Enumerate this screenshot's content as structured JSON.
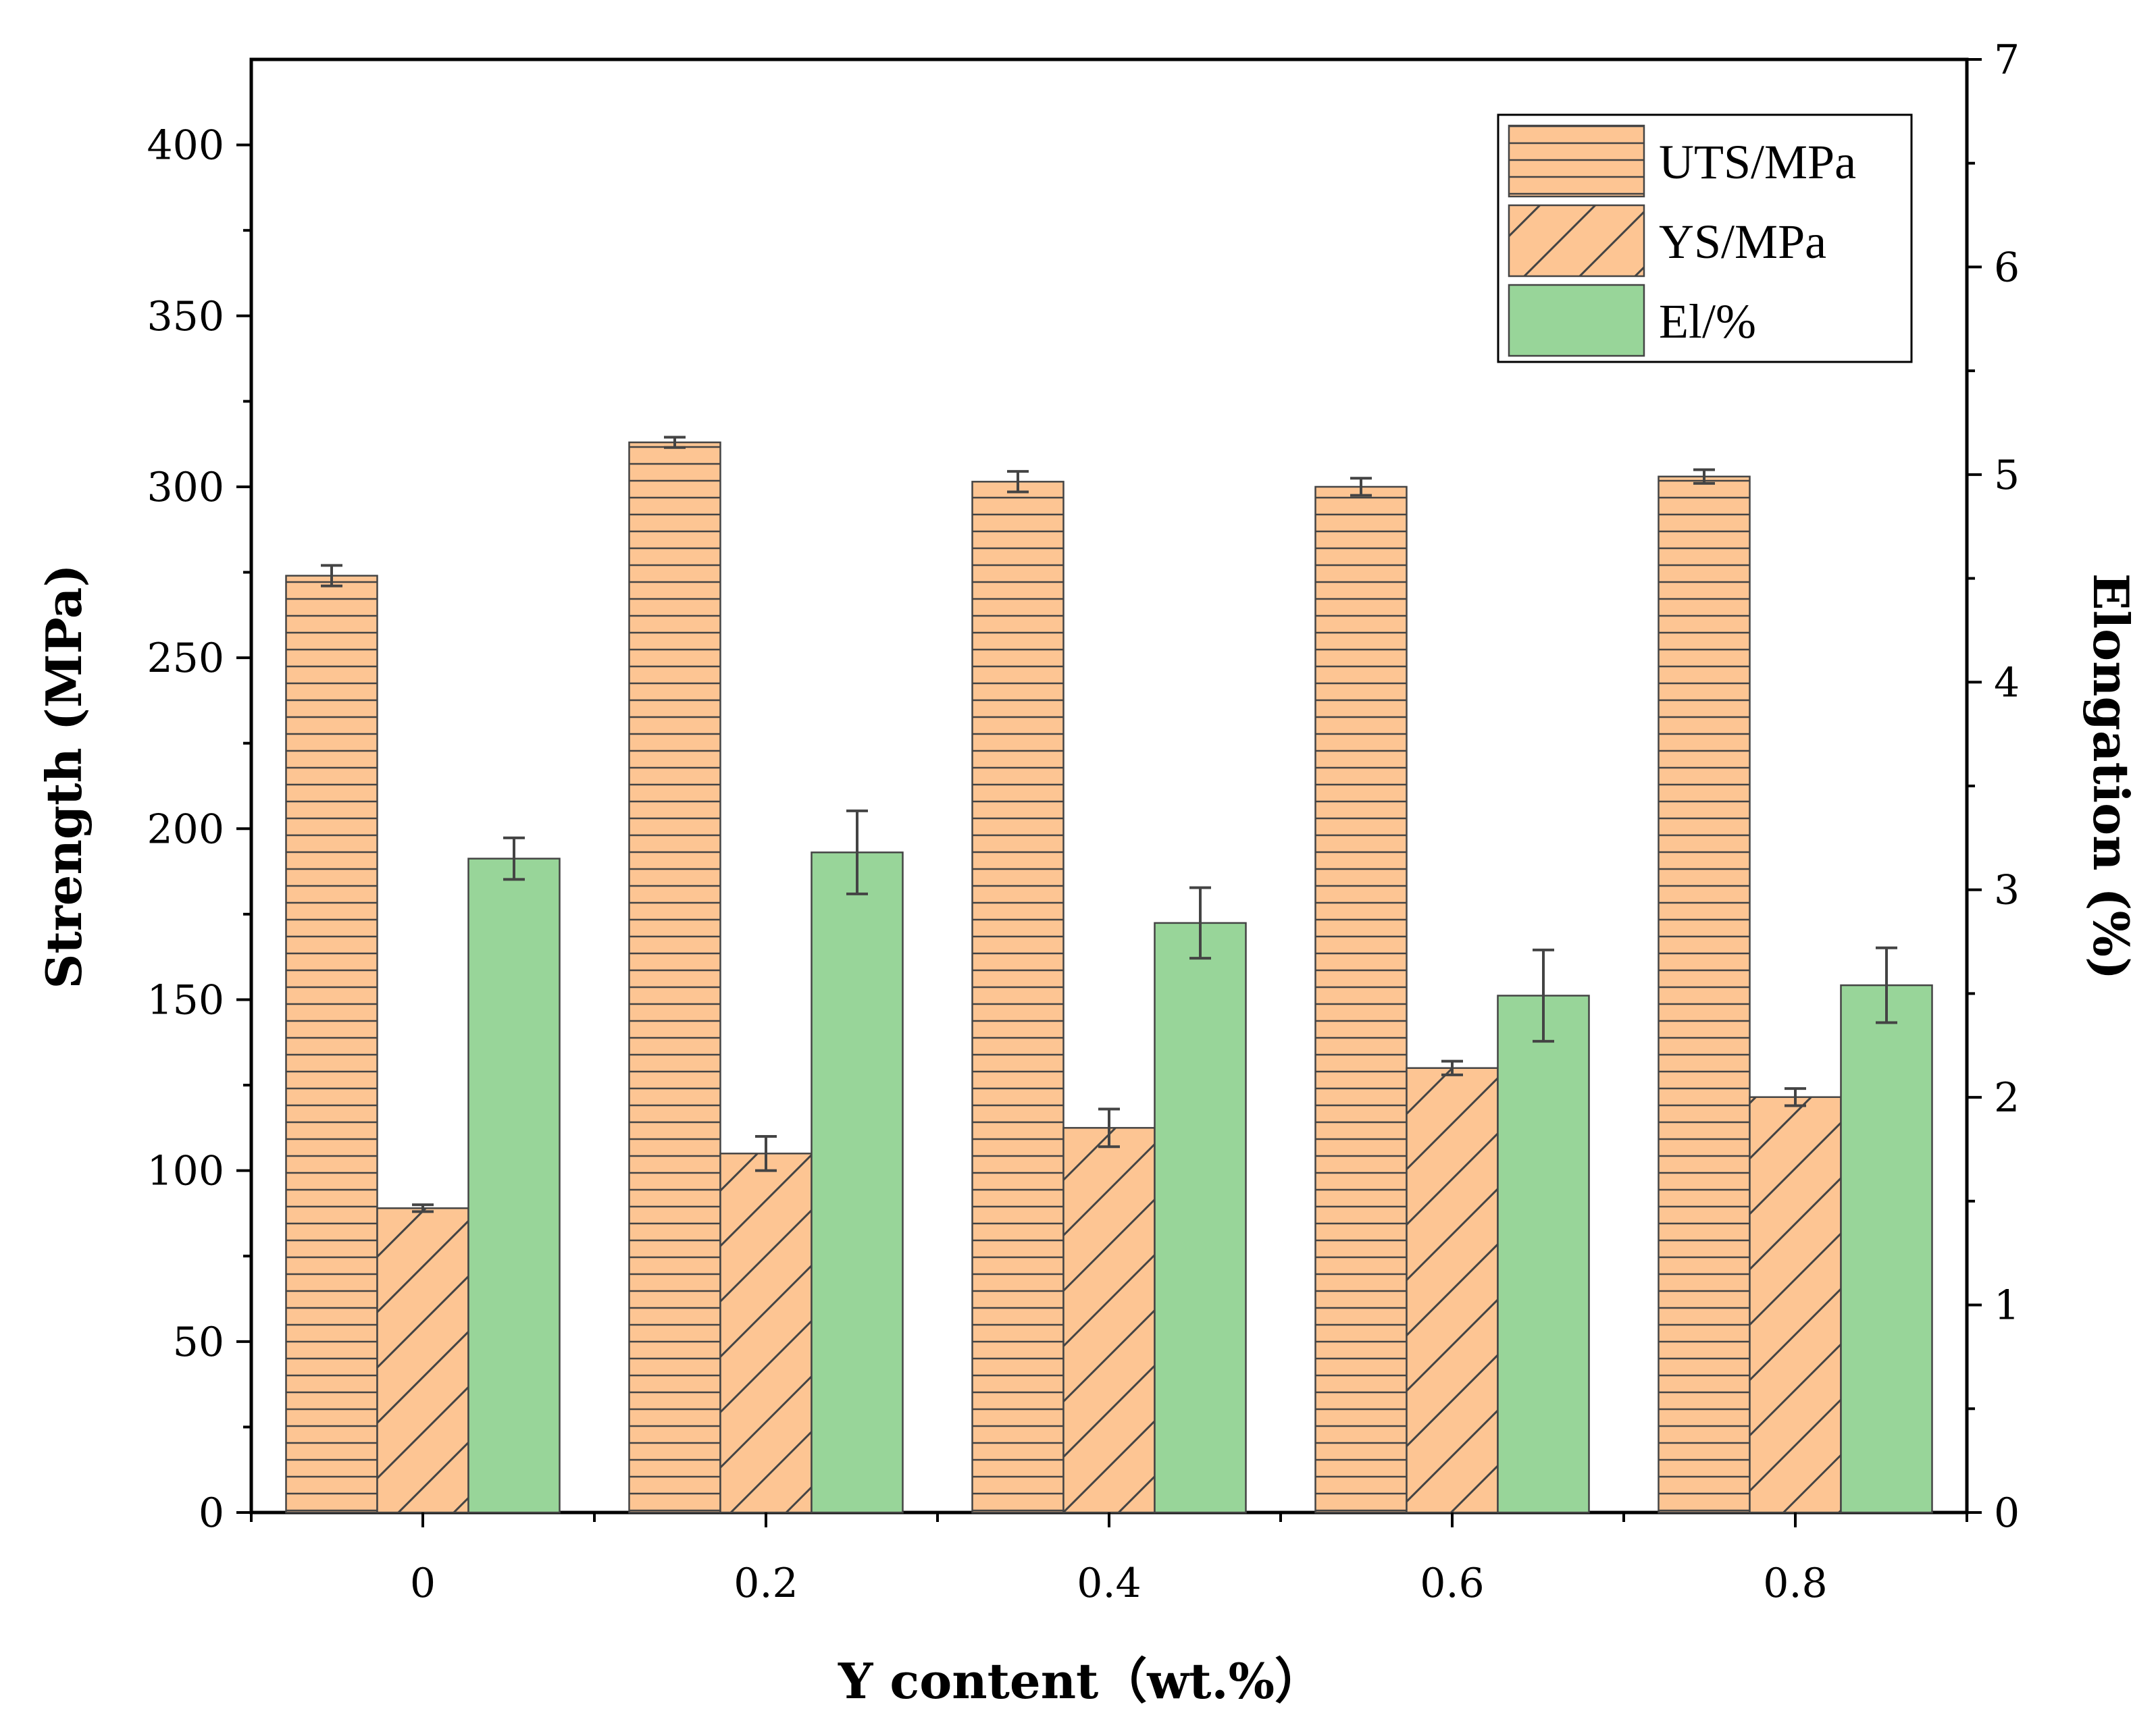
{
  "chart_data": {
    "type": "bar",
    "xlabel": "Y content（wt.%）",
    "ylabel_left": "Strength (MPa)",
    "ylabel_right": "Elongation (%)",
    "categories": [
      "0",
      "0.2",
      "0.4",
      "0.6",
      "0.8"
    ],
    "ylim_left": [
      0,
      425
    ],
    "yticks_left": [
      "0",
      "50",
      "100",
      "150",
      "200",
      "250",
      "300",
      "350",
      "400"
    ],
    "ylim_right": [
      0,
      7
    ],
    "yticks_right": [
      "0",
      "1",
      "2",
      "3",
      "4",
      "5",
      "6",
      "7"
    ],
    "series": [
      {
        "name": "UTS/MPa",
        "axis": "left",
        "pattern": "horizontal",
        "color": "#FDC593",
        "values": [
          274,
          313,
          301.5,
          300,
          303
        ],
        "errors": [
          3,
          1.5,
          3,
          2.5,
          2
        ]
      },
      {
        "name": "YS/MPa",
        "axis": "left",
        "pattern": "diagonal",
        "color": "#FDC593",
        "values": [
          89,
          105,
          112.5,
          130,
          121.5
        ],
        "errors": [
          1,
          5,
          5.5,
          2,
          2.5
        ]
      },
      {
        "name": "El/%",
        "axis": "right",
        "pattern": "solid",
        "color": "#98D599",
        "values": [
          3.15,
          3.18,
          2.84,
          2.49,
          2.54
        ],
        "errors": [
          0.1,
          0.2,
          0.17,
          0.22,
          0.18
        ]
      }
    ],
    "legend": {
      "position": "top-right",
      "entries": [
        "UTS/MPa",
        "YS/MPa",
        "El/%"
      ]
    },
    "grid": false
  }
}
